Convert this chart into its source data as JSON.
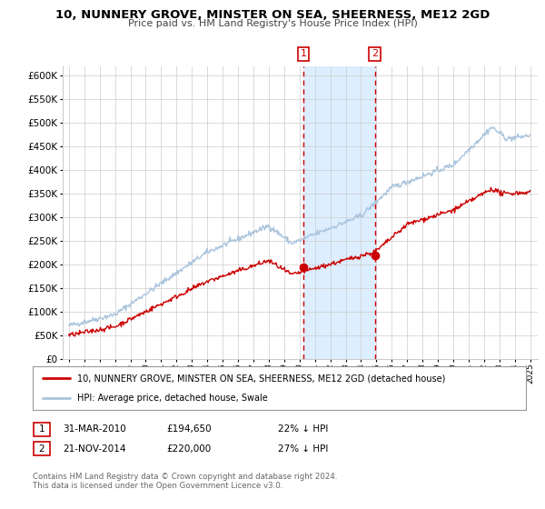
{
  "title": "10, NUNNERY GROVE, MINSTER ON SEA, SHEERNESS, ME12 2GD",
  "subtitle": "Price paid vs. HM Land Registry's House Price Index (HPI)",
  "legend_line1": "10, NUNNERY GROVE, MINSTER ON SEA, SHEERNESS, ME12 2GD (detached house)",
  "legend_line2": "HPI: Average price, detached house, Swale",
  "annotation1_label": "1",
  "annotation1_date": "31-MAR-2010",
  "annotation1_price": "£194,650",
  "annotation1_hpi": "22% ↓ HPI",
  "annotation2_label": "2",
  "annotation2_date": "21-NOV-2014",
  "annotation2_price": "£220,000",
  "annotation2_hpi": "27% ↓ HPI",
  "footer": "Contains HM Land Registry data © Crown copyright and database right 2024.\nThis data is licensed under the Open Government Licence v3.0.",
  "property_color": "#cc0000",
  "hpi_color": "#aac4dd",
  "marker1_x": 2010.25,
  "marker2_x": 2014.9,
  "marker1_y": 194650,
  "marker2_y": 220000,
  "ylim": [
    0,
    620000
  ],
  "xlim_start": 1994.6,
  "xlim_end": 2025.5,
  "shaded_region_color": "#ddeeff",
  "vline_color": "#cc0000",
  "grid_color": "#cccccc",
  "spine_color": "#cccccc"
}
